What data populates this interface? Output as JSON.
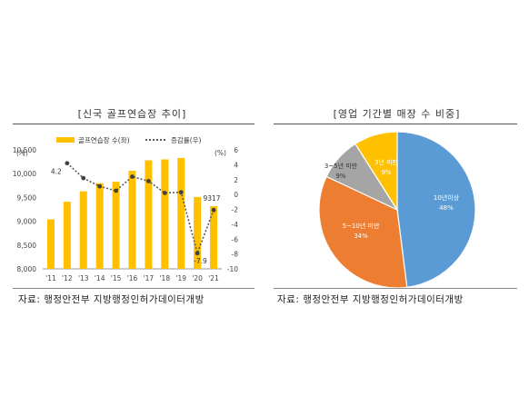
{
  "left": {
    "title": "[신국 골프연습장 추이]",
    "source": "자료: 행정안전부 지방행정인허가데이터개방"
  },
  "right": {
    "title": "[영업 기간별 매장 수 비중]",
    "source": "자료: 행정안전부 지방행정인허가데이터개방"
  },
  "colors": {
    "bar": "#FFC000",
    "line": "#595959",
    "pie_blue": "#5B9BD5",
    "pie_orange": "#ED7D31",
    "pie_gray": "#A5A5A5",
    "pie_yellow": "#FFC000"
  },
  "chart_data": [
    {
      "type": "bar",
      "categories": [
        "'11",
        "'12",
        "'13",
        "'14",
        "'15",
        "'16",
        "'17",
        "'18",
        "'19",
        "'20",
        "'21"
      ],
      "y_unit_left": "(개)",
      "y_unit_right": "(%)",
      "ylim": [
        8000,
        10500
      ],
      "yticks": [
        "10,500",
        "10,000",
        "9,500",
        "9,000",
        "8,500",
        "8,000"
      ],
      "y2lim": [
        -10,
        6
      ],
      "y2ticks": [
        "6",
        "4",
        "2",
        "0",
        "-2",
        "-4",
        "-6",
        "-8",
        "-10"
      ],
      "series": [
        {
          "name": "골프연습장 수(좌)",
          "type": "bar",
          "values": [
            9040,
            9410,
            9630,
            9800,
            9830,
            10060,
            10280,
            10300,
            10330,
            9510,
            9317
          ]
        },
        {
          "name": "증감률(우)",
          "type": "line",
          "style": "dotted",
          "values": [
            null,
            4.2,
            2.2,
            1.1,
            0.5,
            2.4,
            1.8,
            0.2,
            0.3,
            -7.9,
            -2.1
          ]
        }
      ],
      "data_labels": [
        {
          "series": "증감률(우)",
          "category": "'12",
          "text": "4.2"
        },
        {
          "series": "증감률(우)",
          "category": "'20",
          "text": "-7.9"
        },
        {
          "series": "골프연습장 수(좌)",
          "category": "'21",
          "text": "9317"
        }
      ],
      "legend_position": "top"
    },
    {
      "type": "pie",
      "slices": [
        {
          "label": "10년이상",
          "value": 48,
          "text": "48%"
        },
        {
          "label": "5~10년 미만",
          "value": 34,
          "text": "34%"
        },
        {
          "label": "3~5년 미만",
          "value": 9,
          "text": "9%"
        },
        {
          "label": "3년 미만",
          "value": 9,
          "text": "9%"
        }
      ]
    }
  ]
}
